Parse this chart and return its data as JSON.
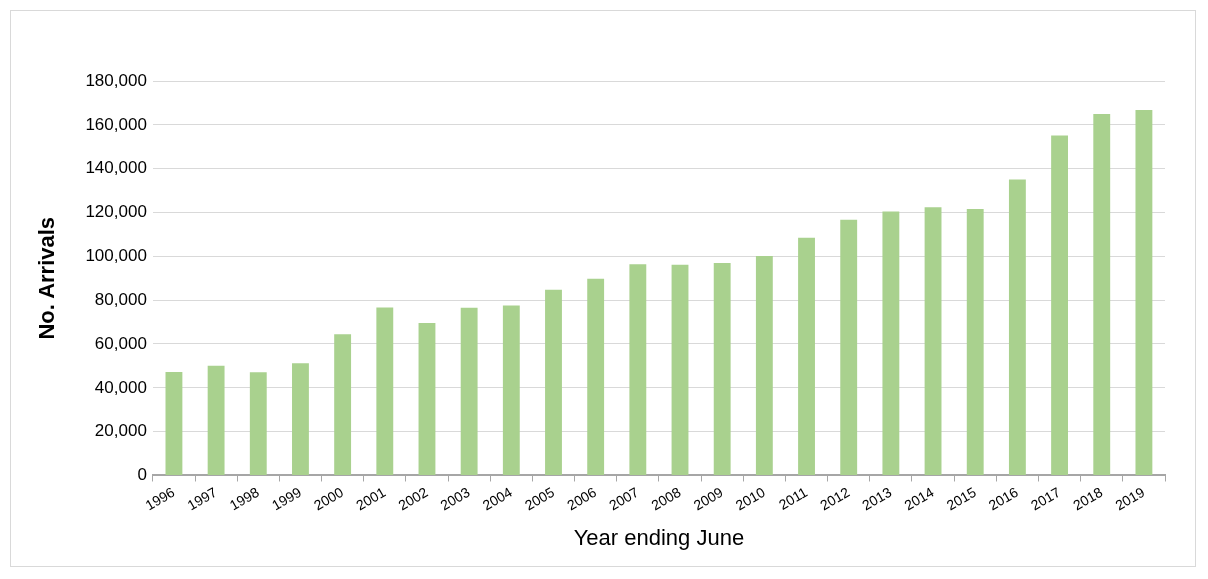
{
  "chart_data": {
    "type": "bar",
    "xlabel": "Year ending June",
    "ylabel": "No. Arrivals",
    "categories": [
      "1996",
      "1997",
      "1998",
      "1999",
      "2000",
      "2001",
      "2002",
      "2003",
      "2004",
      "2005",
      "2006",
      "2007",
      "2008",
      "2009",
      "2010",
      "2011",
      "2012",
      "2013",
      "2014",
      "2015",
      "2016",
      "2017",
      "2018",
      "2019"
    ],
    "values": [
      47200,
      50100,
      47100,
      51200,
      64400,
      76700,
      69600,
      76500,
      77600,
      84700,
      89800,
      96400,
      96100,
      96900,
      100200,
      108500,
      116700,
      120500,
      122400,
      121600,
      135000,
      155100,
      164900,
      166800
    ],
    "color": "#a9d18e",
    "ylim": [
      0,
      180000
    ],
    "yticks": [
      0,
      {
        "value": 20000,
        "label": "20,000"
      },
      {
        "value": 40000,
        "label": "40,000"
      },
      {
        "value": 60000,
        "label": "60,000"
      },
      {
        "value": 80000,
        "label": "80,000"
      },
      {
        "value": 100000,
        "label": "100,000"
      },
      {
        "value": 120000,
        "label": "120,000"
      },
      {
        "value": 140000,
        "label": "140,000"
      },
      {
        "value": 160000,
        "label": "160,000"
      },
      {
        "value": 180000,
        "label": "180,000"
      }
    ],
    "grid": "y",
    "legend": false
  }
}
